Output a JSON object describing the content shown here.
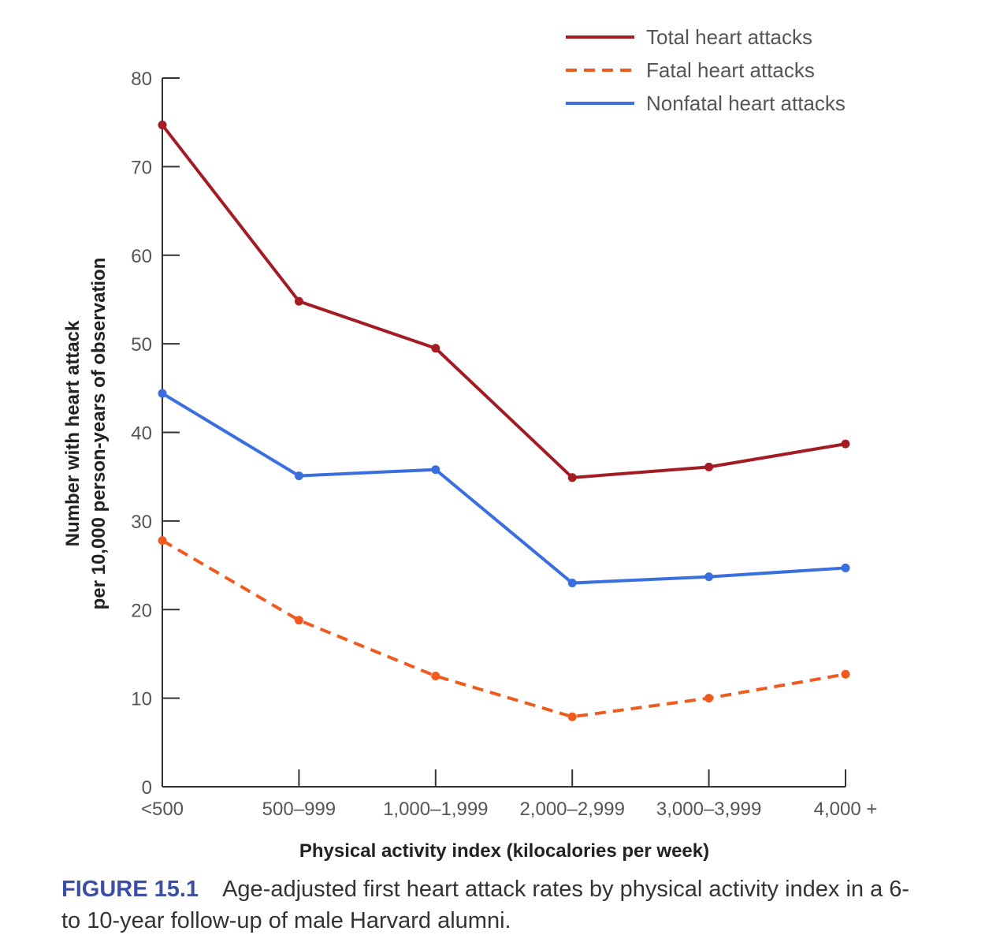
{
  "chart_data": {
    "type": "line",
    "title": "",
    "xlabel": "Physical activity index (kilocalories per week)",
    "ylabel": [
      "Number with heart attack",
      "per 10,000 person-years of observation"
    ],
    "categories": [
      "<500",
      "500–999",
      "1,000–1,999",
      "2,000–2,999",
      "3,000–3,999",
      "4,000 +"
    ],
    "ylim": [
      0,
      80
    ],
    "yticks": [
      0,
      10,
      20,
      30,
      40,
      50,
      60,
      70,
      80
    ],
    "grid": false,
    "legend_position": "top-right",
    "series": [
      {
        "name": "Total heart attacks",
        "color": "#a31c24",
        "dash": false,
        "values": [
          74.7,
          54.8,
          49.5,
          34.9,
          36.1,
          38.7
        ]
      },
      {
        "name": "Fatal heart attacks",
        "color": "#f05a1e",
        "dash": true,
        "values": [
          27.8,
          18.8,
          12.5,
          7.9,
          10.0,
          12.7
        ]
      },
      {
        "name": "Nonfatal heart attacks",
        "color": "#3a6fe0",
        "dash": false,
        "values": [
          44.4,
          35.1,
          35.8,
          23.0,
          23.7,
          24.7
        ]
      }
    ]
  },
  "caption": {
    "label": "FIGURE 15.1",
    "text": "Age-adjusted first heart attack rates by physical activity index in a 6- to 10-year follow-up of male Harvard alumni."
  }
}
